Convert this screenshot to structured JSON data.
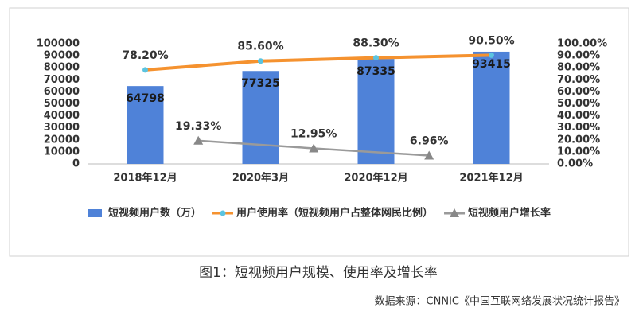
{
  "chart_data": {
    "type": "bar",
    "caption": "图1：短视频用户规模、使用率及增长率",
    "source": "数据来源：CNNIC《中国互联网络发展状况统计报告》",
    "categories": [
      "2018年12月",
      "2020年3月",
      "2020年12月",
      "2021年12月"
    ],
    "series": [
      {
        "name": "短视频用户数（万）",
        "type": "bar",
        "color": "#4f82d8",
        "values": [
          64798,
          77325,
          87335,
          93415
        ]
      },
      {
        "name": "用户使用率（短视频用户占整体网民比例）",
        "type": "line",
        "axis": "y2",
        "color": "#f5922f",
        "marker_color": "#5bc4e0",
        "values": [
          78.2,
          85.6,
          88.3,
          90.5
        ],
        "value_labels": [
          "78.20%",
          "85.60%",
          "88.30%",
          "90.50%"
        ]
      },
      {
        "name": "短视频用户增长率",
        "type": "line",
        "axis": "y2",
        "color": "#9a9a9a",
        "marker": "triangle",
        "values": [
          19.33,
          12.95,
          6.96,
          null
        ],
        "value_labels": [
          "19.33%",
          "12.95%",
          "6.96%",
          null
        ]
      }
    ],
    "ylim": [
      0,
      100000
    ],
    "yticks": [
      0,
      10000,
      20000,
      30000,
      40000,
      50000,
      60000,
      70000,
      80000,
      90000,
      100000
    ],
    "y2lim": [
      0,
      100
    ],
    "y2ticks": [
      {
        "value": 0,
        "label": "0.00%"
      },
      {
        "value": 10,
        "label": "10.00%"
      },
      {
        "value": 20,
        "label": "20.00%"
      },
      {
        "value": 30,
        "label": "30.00%"
      },
      {
        "value": 40,
        "label": "40.00%"
      },
      {
        "value": 50,
        "label": "50.00%"
      },
      {
        "value": 60,
        "label": "60.00%"
      },
      {
        "value": 70,
        "label": "70.00%"
      },
      {
        "value": 80,
        "label": "80.00%"
      },
      {
        "value": 90,
        "label": "90.00%"
      },
      {
        "value": 100,
        "label": "100.00%"
      }
    ],
    "grid": false,
    "legend": "bottom"
  }
}
